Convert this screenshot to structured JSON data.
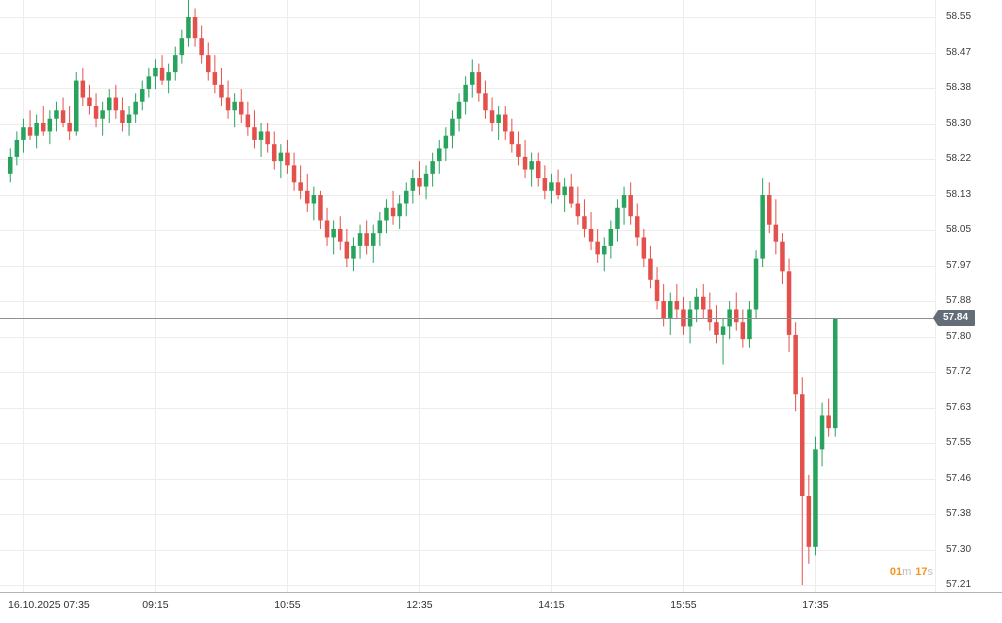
{
  "price_line": {
    "label": "57.84"
  },
  "countdown": {
    "minutes": "01",
    "minutes_unit": "m",
    "seconds": "17",
    "seconds_unit": "s"
  },
  "chart_data": {
    "type": "candlestick",
    "title": "",
    "current_price": 57.84,
    "current_price_label": "57.84",
    "colors": {
      "up": "#27a35e",
      "down": "#e4504b",
      "grid": "#ececec",
      "price_line": "#8f8f8f",
      "badge_bg": "#636d77",
      "countdown_accent": "#f7941d"
    },
    "y_axis": {
      "labels": [
        "58.55",
        "58.47",
        "58.38",
        "58.30",
        "58.22",
        "58.13",
        "58.05",
        "57.97",
        "57.88",
        "57.80",
        "57.72",
        "57.63",
        "57.55",
        "57.46",
        "57.38",
        "57.30",
        "57.21"
      ]
    },
    "x_axis": {
      "ticks": [
        {
          "index": 2,
          "label": "16.10.2025 07:35",
          "align": "left"
        },
        {
          "index": 22,
          "label": "09:15"
        },
        {
          "index": 42,
          "label": "10:55"
        },
        {
          "index": 62,
          "label": "12:35"
        },
        {
          "index": 82,
          "label": "14:15"
        },
        {
          "index": 102,
          "label": "15:55"
        },
        {
          "index": 122,
          "label": "17:35"
        }
      ]
    },
    "candles": [
      [
        58.18,
        58.24,
        58.16,
        58.22
      ],
      [
        58.22,
        58.28,
        58.2,
        58.26
      ],
      [
        58.26,
        58.31,
        58.23,
        58.29
      ],
      [
        58.29,
        58.33,
        58.26,
        58.27
      ],
      [
        58.27,
        58.32,
        58.24,
        58.3
      ],
      [
        58.3,
        58.34,
        58.27,
        58.28
      ],
      [
        58.28,
        58.33,
        58.25,
        58.31
      ],
      [
        58.31,
        58.35,
        58.28,
        58.33
      ],
      [
        58.33,
        58.36,
        58.29,
        58.3
      ],
      [
        58.3,
        58.34,
        58.26,
        58.28
      ],
      [
        58.28,
        58.42,
        58.27,
        58.4
      ],
      [
        58.4,
        58.43,
        58.34,
        58.36
      ],
      [
        58.36,
        58.39,
        58.32,
        58.34
      ],
      [
        58.34,
        58.37,
        58.29,
        58.31
      ],
      [
        58.31,
        58.35,
        58.27,
        58.33
      ],
      [
        58.33,
        58.38,
        58.3,
        58.36
      ],
      [
        58.36,
        58.39,
        58.31,
        58.33
      ],
      [
        58.33,
        58.36,
        58.28,
        58.3
      ],
      [
        58.3,
        58.34,
        58.27,
        58.32
      ],
      [
        58.32,
        58.37,
        58.3,
        58.35
      ],
      [
        58.35,
        58.4,
        58.33,
        58.38
      ],
      [
        58.38,
        58.43,
        58.36,
        58.41
      ],
      [
        58.41,
        58.45,
        58.38,
        58.43
      ],
      [
        58.43,
        58.46,
        58.39,
        58.4
      ],
      [
        58.4,
        58.44,
        58.37,
        58.42
      ],
      [
        58.42,
        58.48,
        58.4,
        58.46
      ],
      [
        58.46,
        58.52,
        58.44,
        58.5
      ],
      [
        58.5,
        58.6,
        58.48,
        58.55
      ],
      [
        58.55,
        58.57,
        58.48,
        58.5
      ],
      [
        58.5,
        58.53,
        58.44,
        58.46
      ],
      [
        58.46,
        58.49,
        58.4,
        58.42
      ],
      [
        58.42,
        58.46,
        58.37,
        58.39
      ],
      [
        58.39,
        58.43,
        58.34,
        58.36
      ],
      [
        58.36,
        58.4,
        58.31,
        58.33
      ],
      [
        58.33,
        58.37,
        58.29,
        58.35
      ],
      [
        58.35,
        58.38,
        58.3,
        58.32
      ],
      [
        58.32,
        58.35,
        58.27,
        58.29
      ],
      [
        58.29,
        58.33,
        58.24,
        58.26
      ],
      [
        58.26,
        58.3,
        58.22,
        58.28
      ],
      [
        58.28,
        58.3,
        58.23,
        58.25
      ],
      [
        58.25,
        58.28,
        58.19,
        58.21
      ],
      [
        58.21,
        58.25,
        58.17,
        58.23
      ],
      [
        58.23,
        58.26,
        58.18,
        58.2
      ],
      [
        58.2,
        58.23,
        58.14,
        58.16
      ],
      [
        58.16,
        58.2,
        58.12,
        58.14
      ],
      [
        58.14,
        58.18,
        58.09,
        58.11
      ],
      [
        58.11,
        58.15,
        58.07,
        58.13
      ],
      [
        58.13,
        58.14,
        58.05,
        58.07
      ],
      [
        58.07,
        58.1,
        58.01,
        58.03
      ],
      [
        58.03,
        58.07,
        57.99,
        58.05
      ],
      [
        58.05,
        58.08,
        58.0,
        58.02
      ],
      [
        58.02,
        58.05,
        57.96,
        57.98
      ],
      [
        57.98,
        58.03,
        57.95,
        58.01
      ],
      [
        58.01,
        58.06,
        57.98,
        58.04
      ],
      [
        58.04,
        58.07,
        57.99,
        58.01
      ],
      [
        58.01,
        58.06,
        57.97,
        58.04
      ],
      [
        58.04,
        58.09,
        58.01,
        58.07
      ],
      [
        58.07,
        58.12,
        58.04,
        58.1
      ],
      [
        58.1,
        58.14,
        58.06,
        58.08
      ],
      [
        58.08,
        58.13,
        58.05,
        58.11
      ],
      [
        58.11,
        58.16,
        58.08,
        58.14
      ],
      [
        58.14,
        58.19,
        58.11,
        58.17
      ],
      [
        58.17,
        58.21,
        58.13,
        58.15
      ],
      [
        58.15,
        58.2,
        58.12,
        58.18
      ],
      [
        58.18,
        58.23,
        58.15,
        58.21
      ],
      [
        58.21,
        58.26,
        58.18,
        58.24
      ],
      [
        58.24,
        58.29,
        58.21,
        58.27
      ],
      [
        58.27,
        58.33,
        58.24,
        58.31
      ],
      [
        58.31,
        58.37,
        58.28,
        58.35
      ],
      [
        58.35,
        58.41,
        58.32,
        58.39
      ],
      [
        58.39,
        58.45,
        58.36,
        58.42
      ],
      [
        58.42,
        58.44,
        58.35,
        58.37
      ],
      [
        58.37,
        58.4,
        58.31,
        58.33
      ],
      [
        58.33,
        58.36,
        58.28,
        58.3
      ],
      [
        58.3,
        58.34,
        58.26,
        58.32
      ],
      [
        58.32,
        58.34,
        58.26,
        58.28
      ],
      [
        58.28,
        58.31,
        58.23,
        58.25
      ],
      [
        58.25,
        58.28,
        58.2,
        58.22
      ],
      [
        58.22,
        58.26,
        58.17,
        58.19
      ],
      [
        58.19,
        58.23,
        58.15,
        58.21
      ],
      [
        58.21,
        58.23,
        58.15,
        58.17
      ],
      [
        58.17,
        58.2,
        58.12,
        58.14
      ],
      [
        58.14,
        58.18,
        58.11,
        58.16
      ],
      [
        58.16,
        58.19,
        58.12,
        58.13
      ],
      [
        58.13,
        58.17,
        58.09,
        58.15
      ],
      [
        58.15,
        58.18,
        58.1,
        58.11
      ],
      [
        58.11,
        58.15,
        58.06,
        58.08
      ],
      [
        58.08,
        58.12,
        58.03,
        58.05
      ],
      [
        58.05,
        58.09,
        58.0,
        58.02
      ],
      [
        58.02,
        58.05,
        57.97,
        57.99
      ],
      [
        57.99,
        58.03,
        57.95,
        58.01
      ],
      [
        58.01,
        58.07,
        57.98,
        58.05
      ],
      [
        58.05,
        58.12,
        58.02,
        58.1
      ],
      [
        58.1,
        58.15,
        58.06,
        58.13
      ],
      [
        58.13,
        58.16,
        58.06,
        58.08
      ],
      [
        58.08,
        58.11,
        58.01,
        58.03
      ],
      [
        58.03,
        58.05,
        57.96,
        57.98
      ],
      [
        57.98,
        58.01,
        57.91,
        57.93
      ],
      [
        57.93,
        57.96,
        57.86,
        57.88
      ],
      [
        57.88,
        57.92,
        57.82,
        57.84
      ],
      [
        57.84,
        57.9,
        57.8,
        57.88
      ],
      [
        57.88,
        57.92,
        57.84,
        57.86
      ],
      [
        57.86,
        57.89,
        57.8,
        57.82
      ],
      [
        57.82,
        57.88,
        57.78,
        57.86
      ],
      [
        57.86,
        57.91,
        57.83,
        57.89
      ],
      [
        57.89,
        57.92,
        57.84,
        57.86
      ],
      [
        57.86,
        57.9,
        57.81,
        57.83
      ],
      [
        57.83,
        57.87,
        57.78,
        57.8
      ],
      [
        57.8,
        57.84,
        57.73,
        57.82
      ],
      [
        57.82,
        57.88,
        57.79,
        57.86
      ],
      [
        57.86,
        57.9,
        57.81,
        57.83
      ],
      [
        57.83,
        57.86,
        57.77,
        57.79
      ],
      [
        57.79,
        57.88,
        57.77,
        57.86
      ],
      [
        57.86,
        58.0,
        57.84,
        57.98
      ],
      [
        57.98,
        58.17,
        57.96,
        58.13
      ],
      [
        58.13,
        58.16,
        58.04,
        58.06
      ],
      [
        58.06,
        58.12,
        57.99,
        58.02
      ],
      [
        58.02,
        58.04,
        57.92,
        57.95
      ],
      [
        57.95,
        57.98,
        57.76,
        57.8
      ],
      [
        57.8,
        57.83,
        57.62,
        57.66
      ],
      [
        57.66,
        57.7,
        57.21,
        57.42
      ],
      [
        57.42,
        57.47,
        57.26,
        57.3
      ],
      [
        57.3,
        57.56,
        57.28,
        57.53
      ],
      [
        57.53,
        57.64,
        57.49,
        57.61
      ],
      [
        57.61,
        57.65,
        57.56,
        57.58
      ],
      [
        57.58,
        57.84,
        57.56,
        57.84
      ]
    ]
  }
}
